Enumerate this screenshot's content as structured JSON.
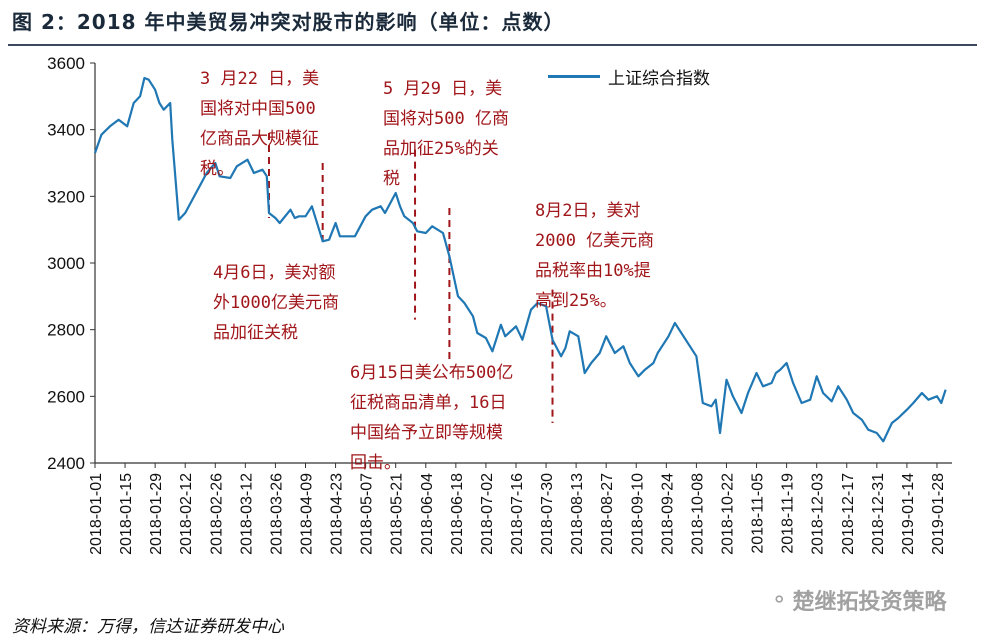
{
  "header": {
    "title": "图 2：2018 年中美贸易冲突对股市的影响（单位：点数）"
  },
  "footer": {
    "source": "资料来源：万得，信达证券研发中心",
    "watermark": "楚继拓投资策略"
  },
  "annotations": [
    {
      "id": "a1",
      "text": "3 月22 日，美\n国将对中国500\n亿商品大规模征\n税。"
    },
    {
      "id": "a2",
      "text": "5 月29 日，美\n国将对500 亿商\n品加征25%的关\n税"
    },
    {
      "id": "a3",
      "text": "8月2日，美对\n2000 亿美元商\n品税率由10%提\n高到25%。"
    },
    {
      "id": "a4",
      "text": "4月6日，美对额\n外1000亿美元商\n品加征关税"
    },
    {
      "id": "a5",
      "text": "6月15日美公布500亿\n征税商品清单，16日\n中国给予立即等规模\n回击。"
    }
  ],
  "colors": {
    "series": "#1f77b4",
    "annotation": "#a0161a",
    "axis": "#333333"
  },
  "chart_data": {
    "type": "line",
    "title": "图 2：2018 年中美贸易冲突对股市的影响（单位：点数）",
    "xlabel": "",
    "ylabel": "",
    "ylim": [
      2400,
      3600
    ],
    "yticks": [
      2400,
      2600,
      2800,
      3000,
      3200,
      3400,
      3600
    ],
    "xlim": [
      "2018-01-01",
      "2019-02-04"
    ],
    "xticks": [
      "2018-01-01",
      "2018-01-15",
      "2018-01-29",
      "2018-02-12",
      "2018-02-26",
      "2018-03-12",
      "2018-03-26",
      "2018-04-09",
      "2018-04-23",
      "2018-05-07",
      "2018-05-21",
      "2018-06-04",
      "2018-06-18",
      "2018-07-02",
      "2018-07-16",
      "2018-07-30",
      "2018-08-13",
      "2018-08-27",
      "2018-09-10",
      "2018-09-24",
      "2018-10-08",
      "2018-10-22",
      "2018-11-05",
      "2018-11-19",
      "2018-12-03",
      "2018-12-17",
      "2018-12-31",
      "2019-01-14",
      "2019-01-28"
    ],
    "grid": false,
    "legend_position": "top-right",
    "series": [
      {
        "name": "上证综合指数",
        "points": [
          [
            "2018-01-01",
            3330
          ],
          [
            "2018-01-04",
            3385
          ],
          [
            "2018-01-08",
            3410
          ],
          [
            "2018-01-12",
            3430
          ],
          [
            "2018-01-16",
            3410
          ],
          [
            "2018-01-19",
            3480
          ],
          [
            "2018-01-22",
            3500
          ],
          [
            "2018-01-24",
            3555
          ],
          [
            "2018-01-26",
            3550
          ],
          [
            "2018-01-29",
            3520
          ],
          [
            "2018-01-31",
            3480
          ],
          [
            "2018-02-02",
            3460
          ],
          [
            "2018-02-05",
            3480
          ],
          [
            "2018-02-06",
            3370
          ],
          [
            "2018-02-09",
            3130
          ],
          [
            "2018-02-12",
            3150
          ],
          [
            "2018-02-22",
            3270
          ],
          [
            "2018-02-26",
            3300
          ],
          [
            "2018-02-28",
            3260
          ],
          [
            "2018-03-05",
            3255
          ],
          [
            "2018-03-08",
            3290
          ],
          [
            "2018-03-13",
            3310
          ],
          [
            "2018-03-16",
            3270
          ],
          [
            "2018-03-20",
            3280
          ],
          [
            "2018-03-22",
            3260
          ],
          [
            "2018-03-23",
            3150
          ],
          [
            "2018-03-26",
            3135
          ],
          [
            "2018-03-28",
            3120
          ],
          [
            "2018-04-02",
            3160
          ],
          [
            "2018-04-04",
            3135
          ],
          [
            "2018-04-06",
            3140
          ],
          [
            "2018-04-09",
            3140
          ],
          [
            "2018-04-12",
            3170
          ],
          [
            "2018-04-17",
            3065
          ],
          [
            "2018-04-20",
            3070
          ],
          [
            "2018-04-23",
            3120
          ],
          [
            "2018-04-25",
            3080
          ],
          [
            "2018-05-02",
            3080
          ],
          [
            "2018-05-07",
            3140
          ],
          [
            "2018-05-10",
            3160
          ],
          [
            "2018-05-14",
            3170
          ],
          [
            "2018-05-16",
            3150
          ],
          [
            "2018-05-21",
            3210
          ],
          [
            "2018-05-23",
            3170
          ],
          [
            "2018-05-25",
            3140
          ],
          [
            "2018-05-29",
            3120
          ],
          [
            "2018-05-31",
            3095
          ],
          [
            "2018-06-04",
            3090
          ],
          [
            "2018-06-07",
            3110
          ],
          [
            "2018-06-12",
            3090
          ],
          [
            "2018-06-15",
            3020
          ],
          [
            "2018-06-19",
            2900
          ],
          [
            "2018-06-22",
            2880
          ],
          [
            "2018-06-26",
            2840
          ],
          [
            "2018-06-28",
            2790
          ],
          [
            "2018-07-02",
            2775
          ],
          [
            "2018-07-05",
            2735
          ],
          [
            "2018-07-09",
            2815
          ],
          [
            "2018-07-11",
            2780
          ],
          [
            "2018-07-16",
            2810
          ],
          [
            "2018-07-19",
            2770
          ],
          [
            "2018-07-23",
            2860
          ],
          [
            "2018-07-26",
            2880
          ],
          [
            "2018-07-30",
            2870
          ],
          [
            "2018-08-02",
            2770
          ],
          [
            "2018-08-06",
            2720
          ],
          [
            "2018-08-08",
            2745
          ],
          [
            "2018-08-10",
            2795
          ],
          [
            "2018-08-14",
            2780
          ],
          [
            "2018-08-17",
            2670
          ],
          [
            "2018-08-20",
            2700
          ],
          [
            "2018-08-24",
            2730
          ],
          [
            "2018-08-27",
            2780
          ],
          [
            "2018-08-31",
            2730
          ],
          [
            "2018-09-04",
            2750
          ],
          [
            "2018-09-07",
            2700
          ],
          [
            "2018-09-11",
            2660
          ],
          [
            "2018-09-14",
            2680
          ],
          [
            "2018-09-18",
            2700
          ],
          [
            "2018-09-20",
            2730
          ],
          [
            "2018-09-25",
            2780
          ],
          [
            "2018-09-28",
            2820
          ],
          [
            "2018-10-08",
            2720
          ],
          [
            "2018-10-11",
            2580
          ],
          [
            "2018-10-15",
            2570
          ],
          [
            "2018-10-17",
            2590
          ],
          [
            "2018-10-19",
            2490
          ],
          [
            "2018-10-22",
            2650
          ],
          [
            "2018-10-25",
            2600
          ],
          [
            "2018-10-29",
            2550
          ],
          [
            "2018-11-01",
            2610
          ],
          [
            "2018-11-05",
            2670
          ],
          [
            "2018-11-08",
            2630
          ],
          [
            "2018-11-12",
            2640
          ],
          [
            "2018-11-14",
            2670
          ],
          [
            "2018-11-16",
            2680
          ],
          [
            "2018-11-19",
            2700
          ],
          [
            "2018-11-22",
            2640
          ],
          [
            "2018-11-26",
            2580
          ],
          [
            "2018-11-30",
            2590
          ],
          [
            "2018-12-03",
            2660
          ],
          [
            "2018-12-06",
            2610
          ],
          [
            "2018-12-10",
            2585
          ],
          [
            "2018-12-13",
            2630
          ],
          [
            "2018-12-17",
            2590
          ],
          [
            "2018-12-20",
            2550
          ],
          [
            "2018-12-24",
            2530
          ],
          [
            "2018-12-27",
            2500
          ],
          [
            "2018-12-31",
            2490
          ],
          [
            "2019-01-03",
            2465
          ],
          [
            "2019-01-07",
            2520
          ],
          [
            "2019-01-10",
            2535
          ],
          [
            "2019-01-14",
            2560
          ],
          [
            "2019-01-17",
            2580
          ],
          [
            "2019-01-21",
            2610
          ],
          [
            "2019-01-24",
            2590
          ],
          [
            "2019-01-28",
            2600
          ],
          [
            "2019-01-30",
            2580
          ],
          [
            "2019-02-01",
            2620
          ]
        ]
      }
    ],
    "event_markers": [
      {
        "date": "2018-03-23",
        "from": 3390,
        "to": 3135,
        "label": "3 月22 日，美国将对中国500亿商品大规模征税。"
      },
      {
        "date": "2018-04-17",
        "from": 3300,
        "to": 3060,
        "label": "4月6日，美对额外1000亿美元商品加征关税"
      },
      {
        "date": "2018-05-30",
        "from": 3340,
        "to": 2830,
        "label": "5 月29 日，美国将对500 亿商品加征25%的关税"
      },
      {
        "date": "2018-06-15",
        "from": 3165,
        "to": 2700,
        "label": "6月15日美公布500亿征税商品清单，16日中国给予立即等规模回击。"
      },
      {
        "date": "2018-08-02",
        "from": 2920,
        "to": 2520,
        "label": "8月2日，美对2000 亿美元商品税率由10%提高到25%。"
      }
    ]
  }
}
